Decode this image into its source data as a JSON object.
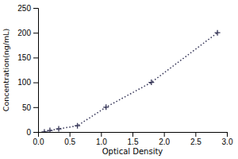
{
  "chart_data": {
    "type": "line",
    "x": [
      0.1,
      0.188,
      0.328,
      0.625,
      1.08,
      1.8,
      2.85
    ],
    "series": [
      {
        "values": [
          0,
          3.125,
          6.25,
          12.5,
          50,
          100,
          200
        ],
        "color": "#333355",
        "marker": "plus",
        "line_style": "dotted"
      }
    ],
    "xlabel": "Optical Density",
    "ylabel": "Concentration(ng/mL)",
    "xlim": [
      0,
      3.0
    ],
    "ylim": [
      0,
      250
    ],
    "xticks": [
      {
        "value": 0,
        "label": "0.0"
      },
      0.5,
      {
        "value": 1.0,
        "label": "1.0"
      },
      1.5,
      {
        "value": 2.0,
        "label": "2.0"
      },
      2.5,
      {
        "value": 3.0,
        "label": "3.0"
      }
    ],
    "yticks": [
      0,
      50,
      100,
      150,
      200,
      250
    ],
    "grid": false
  }
}
